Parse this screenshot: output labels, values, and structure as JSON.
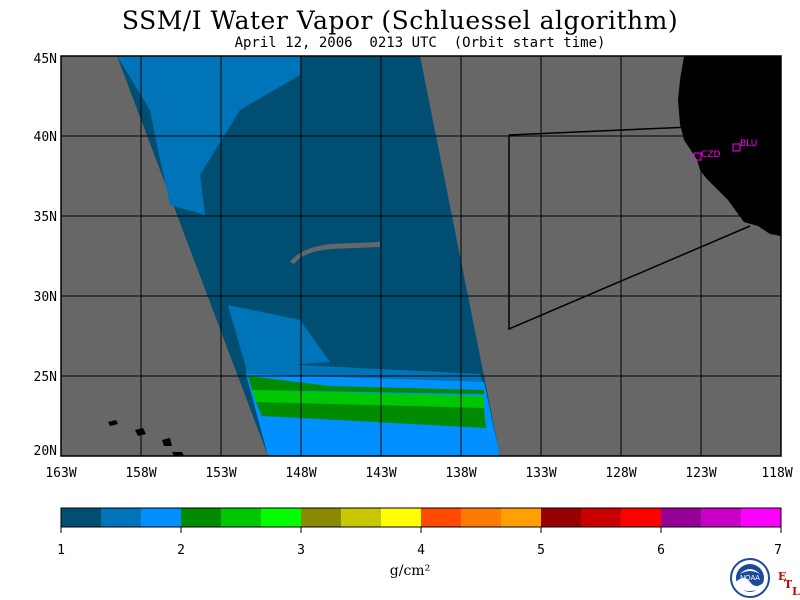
{
  "title": "SSM/I Water Vapor (Schluessel algorithm)",
  "subtitle": "April 12, 2006  0213 UTC  (Orbit start time)",
  "map": {
    "land_color": "#000000",
    "nodata_color": "#676767",
    "lat_labels": [
      "45N",
      "40N",
      "35N",
      "30N",
      "25N",
      "20N"
    ],
    "lon_labels": [
      "163W",
      "158W",
      "153W",
      "148W",
      "143W",
      "138W",
      "133W",
      "128W",
      "123W",
      "118W"
    ],
    "stations": [
      {
        "label": "CZD",
        "color": "#ff00ff"
      },
      {
        "label": "BLU",
        "color": "#ff00ff"
      }
    ]
  },
  "colorbar": {
    "colors": [
      "#004f73",
      "#0074b8",
      "#0090ff",
      "#008b00",
      "#00c800",
      "#00ff00",
      "#8a8a00",
      "#c8c800",
      "#ffff00",
      "#ff4a00",
      "#ff7a00",
      "#ffa000",
      "#960000",
      "#c80000",
      "#ff0000",
      "#960096",
      "#c800c8",
      "#ff00ff"
    ],
    "tick_labels": [
      "1",
      "2",
      "3",
      "4",
      "5",
      "6",
      "7"
    ],
    "unit": "g/cm²"
  },
  "logos": {
    "noaa_text": "NOAA",
    "etl_letters": [
      "E",
      "T",
      "L"
    ]
  }
}
